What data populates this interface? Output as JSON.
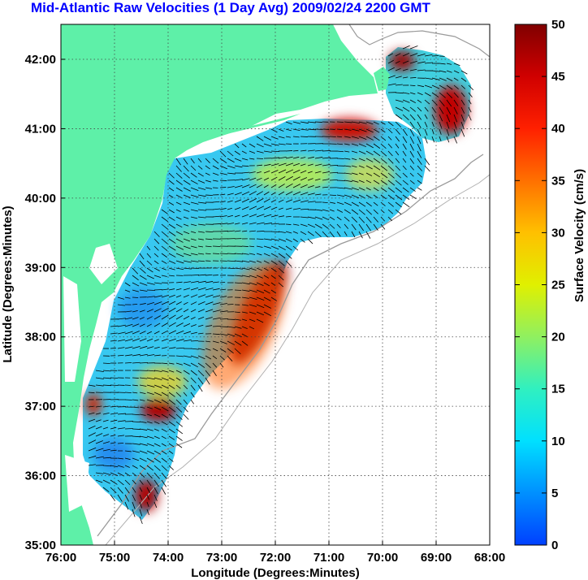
{
  "title": "Mid-Atlantic Raw Velocities (1 Day Avg) 2009/02/24 2200 GMT",
  "x_axis": {
    "label": "Longitude (Degrees:Minutes)",
    "ticks": [
      "76:00",
      "75:00",
      "74:00",
      "73:00",
      "72:00",
      "71:00",
      "70:00",
      "69:00",
      "68:00"
    ]
  },
  "y_axis": {
    "label": "Latitude (Degrees:Minutes)",
    "ticks": [
      "42:00",
      "41:00",
      "40:00",
      "39:00",
      "38:00",
      "37:00",
      "36:00",
      "35:00"
    ]
  },
  "colorbar": {
    "label": "Surface Velocity (cm/s)",
    "ticks": [
      "50",
      "45",
      "40",
      "35",
      "30",
      "25",
      "20",
      "15",
      "10",
      "5",
      "0"
    ],
    "range": [
      0,
      50
    ]
  },
  "colors": {
    "land": "#5ef0a8",
    "title": "#0000ff",
    "grid": "#555555"
  }
}
